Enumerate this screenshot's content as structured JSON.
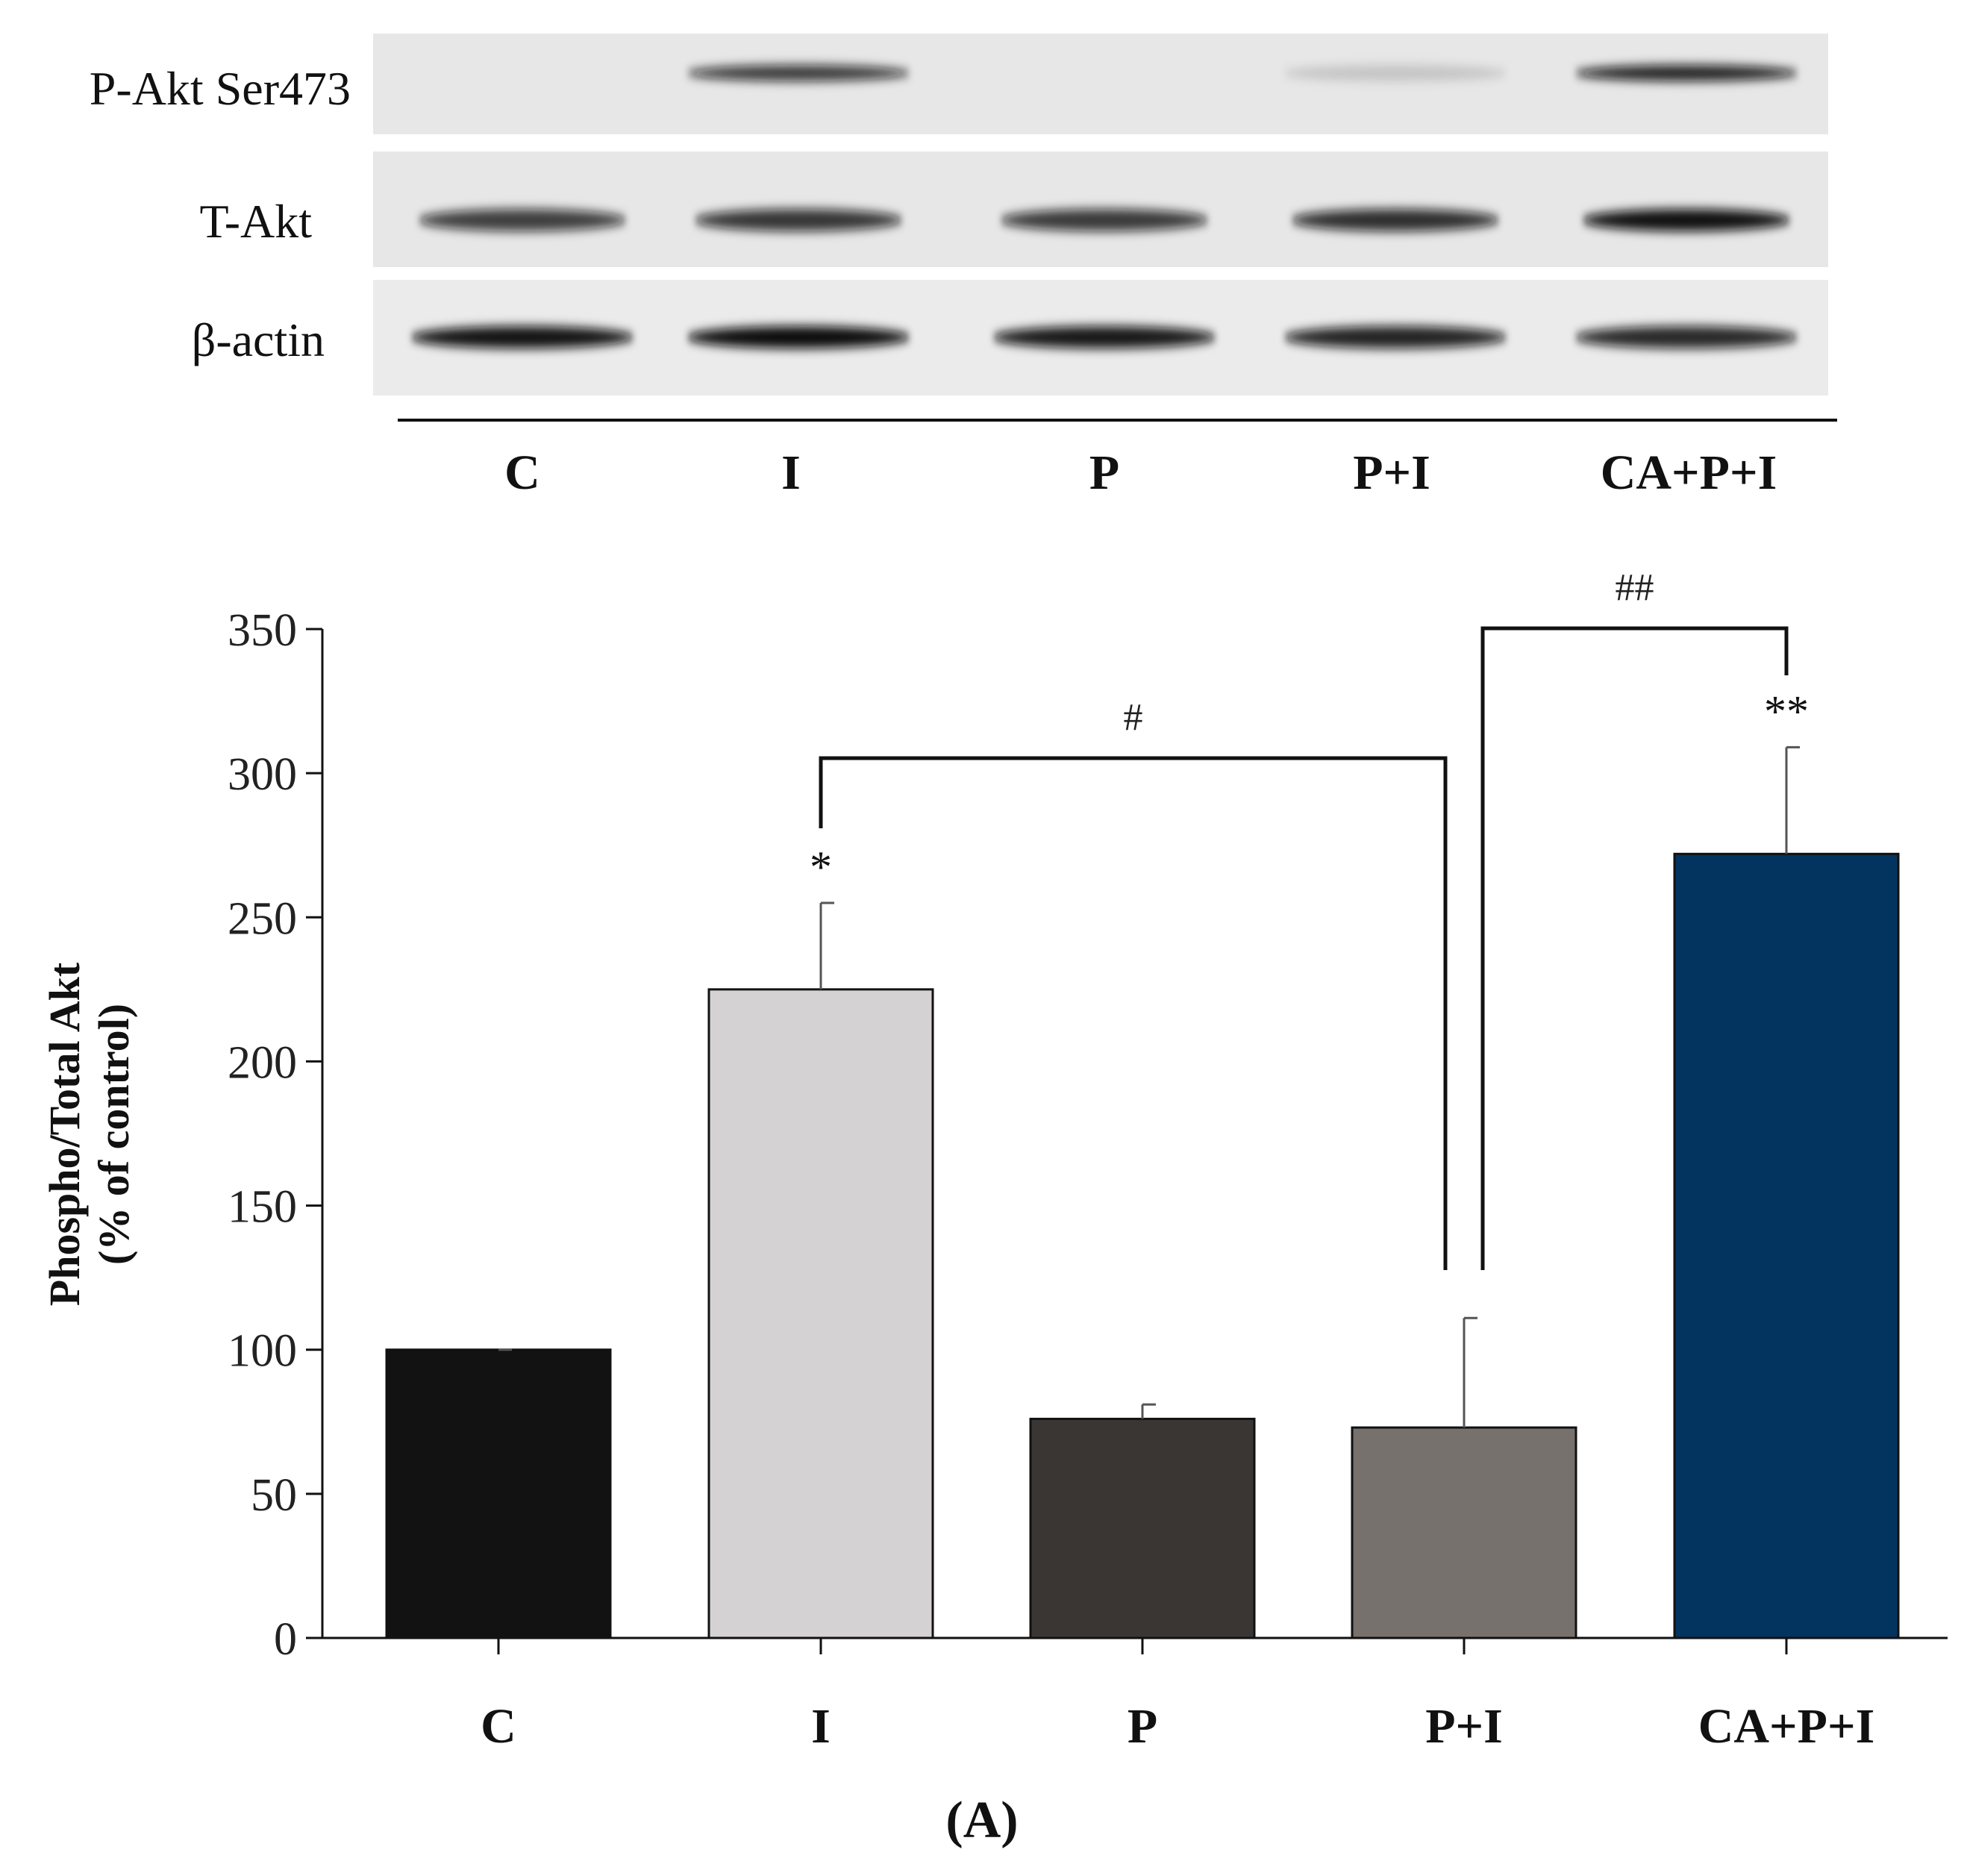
{
  "blot": {
    "row_labels": [
      "P-Akt Ser473",
      "T-Akt",
      "β-actin"
    ],
    "lane_labels": [
      "C",
      "I",
      "P",
      "P+I",
      "CA+P+I"
    ],
    "band_intensity": [
      [
        0.0,
        0.8,
        0.0,
        0.15,
        0.9
      ],
      [
        0.78,
        0.82,
        0.8,
        0.85,
        0.98
      ],
      [
        0.97,
        1.0,
        0.95,
        0.9,
        0.88
      ]
    ]
  },
  "chart_data": {
    "type": "bar",
    "title": "",
    "xlabel": "",
    "ylabel_lines": [
      "Phospho/Total Akt",
      "(% of control)"
    ],
    "categories": [
      "C",
      "I",
      "P",
      "P+I",
      "CA+P+I"
    ],
    "values": [
      100,
      225,
      76,
      73,
      272
    ],
    "errors": [
      0,
      30,
      5,
      38,
      37
    ],
    "colors": [
      "#121212",
      "#d5d2d3",
      "#3a3633",
      "#77716e",
      "#02345f"
    ],
    "ylim": [
      0,
      350
    ],
    "yticks": [
      "0",
      "50",
      "100",
      "150",
      "200",
      "250",
      "300",
      "350"
    ],
    "ytick_values": [
      0,
      50,
      100,
      150,
      200,
      250,
      300,
      350
    ],
    "significance_marks": [
      "",
      "*",
      "",
      "",
      "**"
    ],
    "comparisons": [
      {
        "from": 1,
        "to": 3,
        "label": "#"
      },
      {
        "from": 3,
        "to": 4,
        "label": "##"
      }
    ]
  },
  "panel_label": "(A)"
}
